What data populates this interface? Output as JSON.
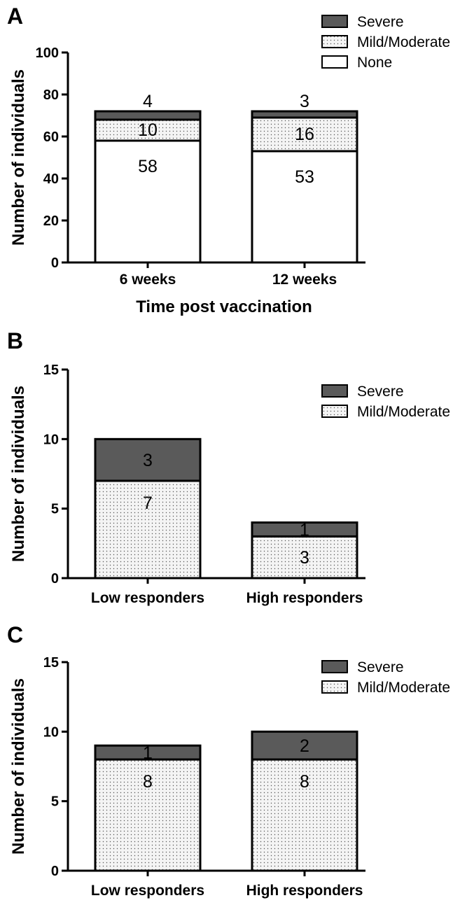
{
  "colors": {
    "severe": "#5a5a5a",
    "mild_moderate": "#f4f4f4",
    "none": "#ffffff",
    "stroke": "#000000"
  },
  "chart_data": [
    {
      "panel": "A",
      "type": "bar",
      "stacked": true,
      "categories": [
        "6 weeks",
        "12 weeks"
      ],
      "series": [
        {
          "name": "None",
          "values": [
            58,
            53
          ],
          "pattern": "none"
        },
        {
          "name": "Mild/Moderate",
          "values": [
            10,
            16
          ],
          "pattern": "dotted"
        },
        {
          "name": "Severe",
          "values": [
            4,
            3
          ],
          "pattern": "severe"
        }
      ],
      "xlabel": "Time post vaccination",
      "ylabel": "Number of individuals",
      "ylim": [
        0,
        100
      ],
      "yticks": [
        0,
        20,
        40,
        60,
        80,
        100
      ],
      "grid": false,
      "legend_position": "top-right",
      "legend_order": [
        "Severe",
        "Mild/Moderate",
        "None"
      ]
    },
    {
      "panel": "B",
      "type": "bar",
      "stacked": true,
      "categories": [
        "Low responders",
        "High responders"
      ],
      "series": [
        {
          "name": "Mild/Moderate",
          "values": [
            7,
            3
          ],
          "pattern": "dotted"
        },
        {
          "name": "Severe",
          "values": [
            3,
            1
          ],
          "pattern": "severe"
        }
      ],
      "xlabel": "",
      "ylabel": "Number of individuals",
      "ylim": [
        0,
        15
      ],
      "yticks": [
        0,
        5,
        10,
        15
      ],
      "grid": false,
      "legend_position": "top-right",
      "legend_order": [
        "Severe",
        "Mild/Moderate"
      ]
    },
    {
      "panel": "C",
      "type": "bar",
      "stacked": true,
      "categories": [
        "Low responders",
        "High responders"
      ],
      "series": [
        {
          "name": "Mild/Moderate",
          "values": [
            8,
            8
          ],
          "pattern": "dotted"
        },
        {
          "name": "Severe",
          "values": [
            1,
            2
          ],
          "pattern": "severe"
        }
      ],
      "xlabel": "",
      "ylabel": "Number of individuals",
      "ylim": [
        0,
        15
      ],
      "yticks": [
        0,
        5,
        10,
        15
      ],
      "grid": false,
      "legend_position": "top-right",
      "legend_order": [
        "Severe",
        "Mild/Moderate"
      ]
    }
  ]
}
